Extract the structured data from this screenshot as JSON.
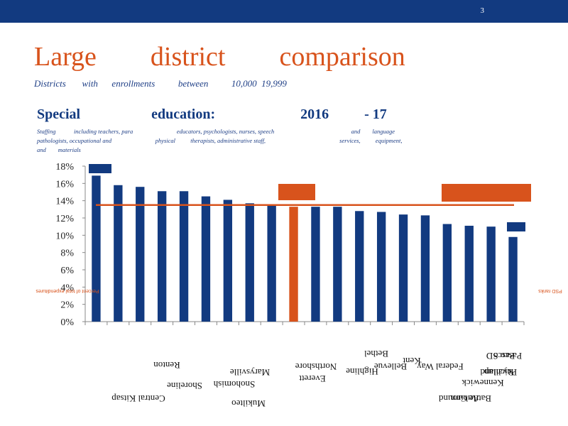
{
  "slide": {
    "number": "3"
  },
  "header": {
    "title": "Large        district        comparison",
    "subtitle": "Districts       with      enrollments          between          10,000  19,999"
  },
  "chart_heading": {
    "title": "Special                    education:                        2016          - 17",
    "note_line1": "Staffing            including teachers, para                             educators, psychologists, nurses, speech                                                   and        language",
    "note_line2": "pathologists, occupational and                             physical          therapists, administrative staff,                                                 services,          equipment,",
    "note_line3": "and        materials"
  },
  "colors": {
    "bar": "#123a80",
    "highlight": "#d8531c",
    "average_line": "#d8531c"
  },
  "chart_data": {
    "type": "bar",
    "ylim": [
      0,
      0.18
    ],
    "yticks": [
      "0%",
      "2%",
      "4%",
      "6%",
      "8%",
      "10%",
      "12%",
      "14%",
      "16%",
      "18%"
    ],
    "values": [
      0.169,
      0.158,
      0.156,
      0.151,
      0.151,
      0.145,
      0.141,
      0.137,
      0.136,
      0.133,
      0.133,
      0.133,
      0.128,
      0.127,
      0.124,
      0.123,
      0.113,
      0.111,
      0.11,
      0.098
    ],
    "highlight_index": 9,
    "average": 0.135,
    "left_axis_label": "Percent of total expenditures",
    "right_axis_label": "PSD ranks",
    "categories": [
      "Renton",
      "Central Kitsap",
      "Shoreline",
      "Snohomish",
      "Marysville",
      "Mukilteo",
      "Northshore",
      "Everett",
      "Highline",
      "Kent",
      "Bethel",
      "Auburn",
      "Bellevue",
      "Federal Way",
      "Battle Ground",
      "Kennewick",
      "Richland",
      "Pasco",
      "Puyallup",
      "Pasco SD"
    ]
  }
}
